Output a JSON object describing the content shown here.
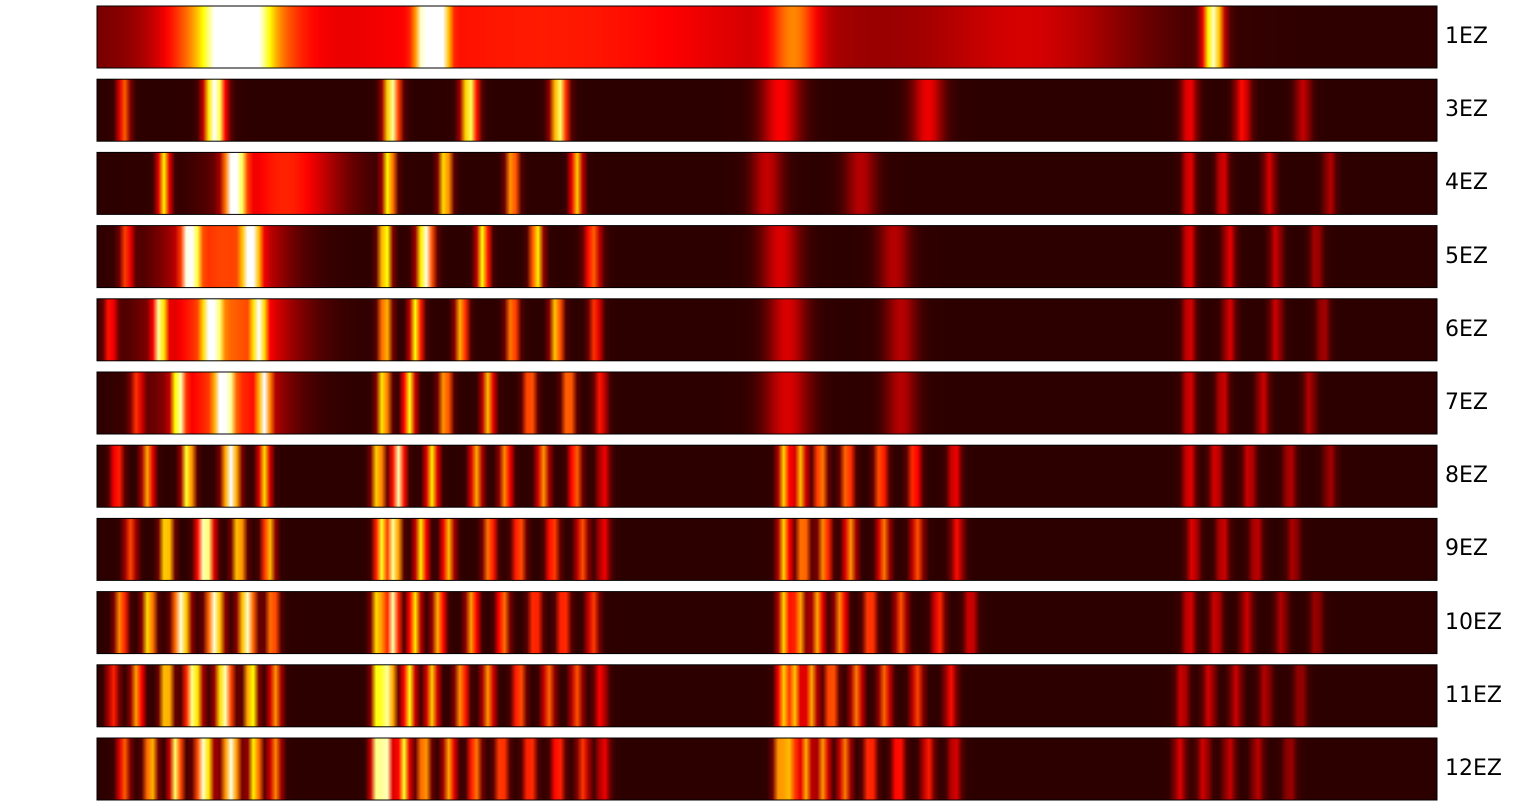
{
  "chart_data": {
    "type": "heatmap",
    "colormap": "hot",
    "background": "#ffffff",
    "strips": [
      {
        "label": "1EZ",
        "peaks": [
          [
            0.1,
            0.55,
            0.03
          ],
          [
            0.25,
            0.22,
            0.2
          ],
          [
            0.105,
            0.85,
            0.012
          ],
          [
            0.248,
            1.0,
            0.006
          ],
          [
            0.257,
            0.55,
            0.004
          ],
          [
            0.52,
            0.3,
            0.012
          ],
          [
            0.7,
            0.2,
            0.06
          ],
          [
            0.833,
            0.85,
            0.005
          ],
          [
            0.4,
            0.15,
            0.15
          ]
        ]
      },
      {
        "label": "3EZ",
        "peaks": [
          [
            0.088,
            1.0,
            0.005
          ],
          [
            0.22,
            0.85,
            0.004
          ],
          [
            0.278,
            0.8,
            0.004
          ],
          [
            0.345,
            0.8,
            0.004
          ],
          [
            0.02,
            0.45,
            0.003
          ],
          [
            0.51,
            0.3,
            0.01
          ],
          [
            0.62,
            0.28,
            0.008
          ],
          [
            0.815,
            0.3,
            0.004
          ],
          [
            0.855,
            0.32,
            0.004
          ],
          [
            0.9,
            0.22,
            0.004
          ]
        ]
      },
      {
        "label": "4EZ",
        "peaks": [
          [
            0.103,
            1.0,
            0.005
          ],
          [
            0.05,
            0.65,
            0.003
          ],
          [
            0.218,
            0.72,
            0.003
          ],
          [
            0.26,
            0.72,
            0.003
          ],
          [
            0.31,
            0.6,
            0.003
          ],
          [
            0.358,
            0.6,
            0.003
          ],
          [
            0.14,
            0.35,
            0.03
          ],
          [
            0.5,
            0.22,
            0.008
          ],
          [
            0.57,
            0.2,
            0.008
          ],
          [
            0.815,
            0.3,
            0.003
          ],
          [
            0.84,
            0.28,
            0.003
          ],
          [
            0.875,
            0.25,
            0.003
          ],
          [
            0.92,
            0.2,
            0.003
          ]
        ]
      },
      {
        "label": "5EZ",
        "peaks": [
          [
            0.07,
            0.92,
            0.004
          ],
          [
            0.115,
            0.88,
            0.004
          ],
          [
            0.022,
            0.4,
            0.003
          ],
          [
            0.215,
            0.8,
            0.003
          ],
          [
            0.245,
            0.92,
            0.004
          ],
          [
            0.288,
            0.7,
            0.003
          ],
          [
            0.328,
            0.7,
            0.003
          ],
          [
            0.37,
            0.45,
            0.004
          ],
          [
            0.095,
            0.4,
            0.03
          ],
          [
            0.51,
            0.25,
            0.01
          ],
          [
            0.595,
            0.2,
            0.008
          ],
          [
            0.815,
            0.3,
            0.003
          ],
          [
            0.845,
            0.28,
            0.003
          ],
          [
            0.88,
            0.24,
            0.003
          ],
          [
            0.91,
            0.2,
            0.003
          ]
        ]
      },
      {
        "label": "6EZ",
        "peaks": [
          [
            0.086,
            0.92,
            0.004
          ],
          [
            0.047,
            0.72,
            0.003
          ],
          [
            0.121,
            0.75,
            0.003
          ],
          [
            0.01,
            0.35,
            0.003
          ],
          [
            0.215,
            0.65,
            0.003
          ],
          [
            0.238,
            0.7,
            0.003
          ],
          [
            0.272,
            0.6,
            0.003
          ],
          [
            0.31,
            0.55,
            0.003
          ],
          [
            0.343,
            0.65,
            0.003
          ],
          [
            0.372,
            0.4,
            0.003
          ],
          [
            0.095,
            0.45,
            0.035
          ],
          [
            0.515,
            0.25,
            0.01
          ],
          [
            0.6,
            0.2,
            0.008
          ],
          [
            0.815,
            0.28,
            0.003
          ],
          [
            0.845,
            0.26,
            0.003
          ],
          [
            0.88,
            0.24,
            0.003
          ],
          [
            0.915,
            0.2,
            0.003
          ]
        ]
      },
      {
        "label": "7EZ",
        "peaks": [
          [
            0.095,
            0.95,
            0.004
          ],
          [
            0.061,
            0.72,
            0.003
          ],
          [
            0.125,
            0.75,
            0.003
          ],
          [
            0.03,
            0.35,
            0.003
          ],
          [
            0.214,
            0.72,
            0.003
          ],
          [
            0.233,
            0.7,
            0.003
          ],
          [
            0.26,
            0.6,
            0.003
          ],
          [
            0.292,
            0.58,
            0.003
          ],
          [
            0.323,
            0.52,
            0.003
          ],
          [
            0.352,
            0.55,
            0.003
          ],
          [
            0.376,
            0.35,
            0.003
          ],
          [
            0.095,
            0.4,
            0.03
          ],
          [
            0.515,
            0.25,
            0.012
          ],
          [
            0.6,
            0.2,
            0.008
          ],
          [
            0.815,
            0.28,
            0.003
          ],
          [
            0.84,
            0.26,
            0.003
          ],
          [
            0.87,
            0.24,
            0.003
          ],
          [
            0.905,
            0.2,
            0.003
          ]
        ]
      },
      {
        "label": "8EZ",
        "peaks": [
          [
            0.1,
            0.95,
            0.004
          ],
          [
            0.068,
            0.8,
            0.003
          ],
          [
            0.125,
            0.62,
            0.003
          ],
          [
            0.038,
            0.55,
            0.003
          ],
          [
            0.015,
            0.4,
            0.003
          ],
          [
            0.21,
            0.7,
            0.003
          ],
          [
            0.225,
            0.85,
            0.003
          ],
          [
            0.25,
            0.65,
            0.003
          ],
          [
            0.283,
            0.55,
            0.003
          ],
          [
            0.305,
            0.52,
            0.003
          ],
          [
            0.333,
            0.52,
            0.003
          ],
          [
            0.357,
            0.48,
            0.003
          ],
          [
            0.378,
            0.3,
            0.003
          ],
          [
            0.513,
            0.62,
            0.003
          ],
          [
            0.525,
            0.58,
            0.003
          ],
          [
            0.54,
            0.55,
            0.003
          ],
          [
            0.56,
            0.52,
            0.003
          ],
          [
            0.585,
            0.48,
            0.003
          ],
          [
            0.61,
            0.42,
            0.003
          ],
          [
            0.64,
            0.32,
            0.003
          ],
          [
            0.815,
            0.3,
            0.003
          ],
          [
            0.835,
            0.28,
            0.003
          ],
          [
            0.86,
            0.26,
            0.003
          ],
          [
            0.89,
            0.22,
            0.003
          ],
          [
            0.92,
            0.18,
            0.003
          ]
        ]
      },
      {
        "label": "9EZ",
        "peaks": [
          [
            0.081,
            0.95,
            0.004
          ],
          [
            0.052,
            0.75,
            0.003
          ],
          [
            0.106,
            0.7,
            0.003
          ],
          [
            0.128,
            0.62,
            0.003
          ],
          [
            0.025,
            0.4,
            0.003
          ],
          [
            0.212,
            0.72,
            0.003
          ],
          [
            0.222,
            0.88,
            0.003
          ],
          [
            0.242,
            0.65,
            0.003
          ],
          [
            0.262,
            0.58,
            0.003
          ],
          [
            0.293,
            0.52,
            0.003
          ],
          [
            0.315,
            0.48,
            0.003
          ],
          [
            0.34,
            0.45,
            0.003
          ],
          [
            0.362,
            0.42,
            0.003
          ],
          [
            0.378,
            0.3,
            0.003
          ],
          [
            0.513,
            0.62,
            0.003
          ],
          [
            0.527,
            0.58,
            0.003
          ],
          [
            0.543,
            0.55,
            0.003
          ],
          [
            0.562,
            0.52,
            0.003
          ],
          [
            0.587,
            0.48,
            0.003
          ],
          [
            0.612,
            0.42,
            0.003
          ],
          [
            0.642,
            0.32,
            0.003
          ],
          [
            0.818,
            0.28,
            0.003
          ],
          [
            0.84,
            0.26,
            0.003
          ],
          [
            0.865,
            0.24,
            0.003
          ],
          [
            0.893,
            0.2,
            0.003
          ]
        ]
      },
      {
        "label": "10EZ",
        "peaks": [
          [
            0.063,
            0.9,
            0.004
          ],
          [
            0.088,
            0.9,
            0.004
          ],
          [
            0.112,
            0.88,
            0.004
          ],
          [
            0.039,
            0.7,
            0.003
          ],
          [
            0.018,
            0.55,
            0.003
          ],
          [
            0.131,
            0.55,
            0.003
          ],
          [
            0.21,
            0.72,
            0.003
          ],
          [
            0.221,
            0.85,
            0.003
          ],
          [
            0.237,
            0.65,
            0.003
          ],
          [
            0.255,
            0.58,
            0.003
          ],
          [
            0.28,
            0.55,
            0.003
          ],
          [
            0.303,
            0.5,
            0.003
          ],
          [
            0.327,
            0.45,
            0.003
          ],
          [
            0.348,
            0.45,
            0.003
          ],
          [
            0.37,
            0.4,
            0.003
          ],
          [
            0.513,
            0.62,
            0.003
          ],
          [
            0.524,
            0.58,
            0.003
          ],
          [
            0.538,
            0.55,
            0.003
          ],
          [
            0.555,
            0.52,
            0.003
          ],
          [
            0.577,
            0.48,
            0.003
          ],
          [
            0.6,
            0.42,
            0.003
          ],
          [
            0.628,
            0.38,
            0.003
          ],
          [
            0.652,
            0.28,
            0.003
          ],
          [
            0.815,
            0.28,
            0.003
          ],
          [
            0.835,
            0.26,
            0.003
          ],
          [
            0.858,
            0.24,
            0.003
          ],
          [
            0.884,
            0.2,
            0.003
          ],
          [
            0.91,
            0.18,
            0.003
          ]
        ]
      },
      {
        "label": "11EZ",
        "peaks": [
          [
            0.072,
            0.85,
            0.004
          ],
          [
            0.095,
            0.88,
            0.004
          ],
          [
            0.115,
            0.78,
            0.003
          ],
          [
            0.052,
            0.72,
            0.003
          ],
          [
            0.03,
            0.55,
            0.003
          ],
          [
            0.133,
            0.52,
            0.003
          ],
          [
            0.012,
            0.35,
            0.003
          ],
          [
            0.21,
            0.8,
            0.003
          ],
          [
            0.218,
            0.85,
            0.003
          ],
          [
            0.233,
            0.7,
            0.003
          ],
          [
            0.25,
            0.6,
            0.003
          ],
          [
            0.272,
            0.55,
            0.003
          ],
          [
            0.292,
            0.52,
            0.003
          ],
          [
            0.315,
            0.48,
            0.003
          ],
          [
            0.337,
            0.45,
            0.003
          ],
          [
            0.358,
            0.42,
            0.003
          ],
          [
            0.376,
            0.32,
            0.003
          ],
          [
            0.512,
            0.6,
            0.003
          ],
          [
            0.521,
            0.58,
            0.003
          ],
          [
            0.533,
            0.55,
            0.003
          ],
          [
            0.548,
            0.52,
            0.003
          ],
          [
            0.567,
            0.48,
            0.003
          ],
          [
            0.588,
            0.45,
            0.003
          ],
          [
            0.612,
            0.4,
            0.003
          ],
          [
            0.637,
            0.32,
            0.003
          ],
          [
            0.81,
            0.26,
            0.003
          ],
          [
            0.83,
            0.25,
            0.003
          ],
          [
            0.85,
            0.23,
            0.003
          ],
          [
            0.872,
            0.21,
            0.003
          ],
          [
            0.898,
            0.18,
            0.003
          ]
        ]
      },
      {
        "label": "12EZ",
        "peaks": [
          [
            0.08,
            0.9,
            0.004
          ],
          [
            0.1,
            0.9,
            0.004
          ],
          [
            0.059,
            0.8,
            0.003
          ],
          [
            0.118,
            0.72,
            0.003
          ],
          [
            0.04,
            0.65,
            0.003
          ],
          [
            0.02,
            0.45,
            0.003
          ],
          [
            0.133,
            0.5,
            0.003
          ],
          [
            0.209,
            0.8,
            0.003
          ],
          [
            0.216,
            0.85,
            0.003
          ],
          [
            0.229,
            0.72,
            0.003
          ],
          [
            0.244,
            0.62,
            0.003
          ],
          [
            0.263,
            0.55,
            0.003
          ],
          [
            0.282,
            0.52,
            0.003
          ],
          [
            0.302,
            0.48,
            0.003
          ],
          [
            0.323,
            0.45,
            0.003
          ],
          [
            0.344,
            0.42,
            0.003
          ],
          [
            0.363,
            0.38,
            0.003
          ],
          [
            0.378,
            0.3,
            0.003
          ],
          [
            0.51,
            0.6,
            0.003
          ],
          [
            0.518,
            0.58,
            0.003
          ],
          [
            0.529,
            0.55,
            0.003
          ],
          [
            0.542,
            0.52,
            0.003
          ],
          [
            0.558,
            0.48,
            0.003
          ],
          [
            0.577,
            0.45,
            0.003
          ],
          [
            0.598,
            0.4,
            0.003
          ],
          [
            0.62,
            0.35,
            0.003
          ],
          [
            0.64,
            0.28,
            0.003
          ],
          [
            0.808,
            0.26,
            0.003
          ],
          [
            0.826,
            0.25,
            0.003
          ],
          [
            0.845,
            0.23,
            0.003
          ],
          [
            0.866,
            0.21,
            0.003
          ],
          [
            0.89,
            0.18,
            0.003
          ]
        ]
      }
    ]
  }
}
